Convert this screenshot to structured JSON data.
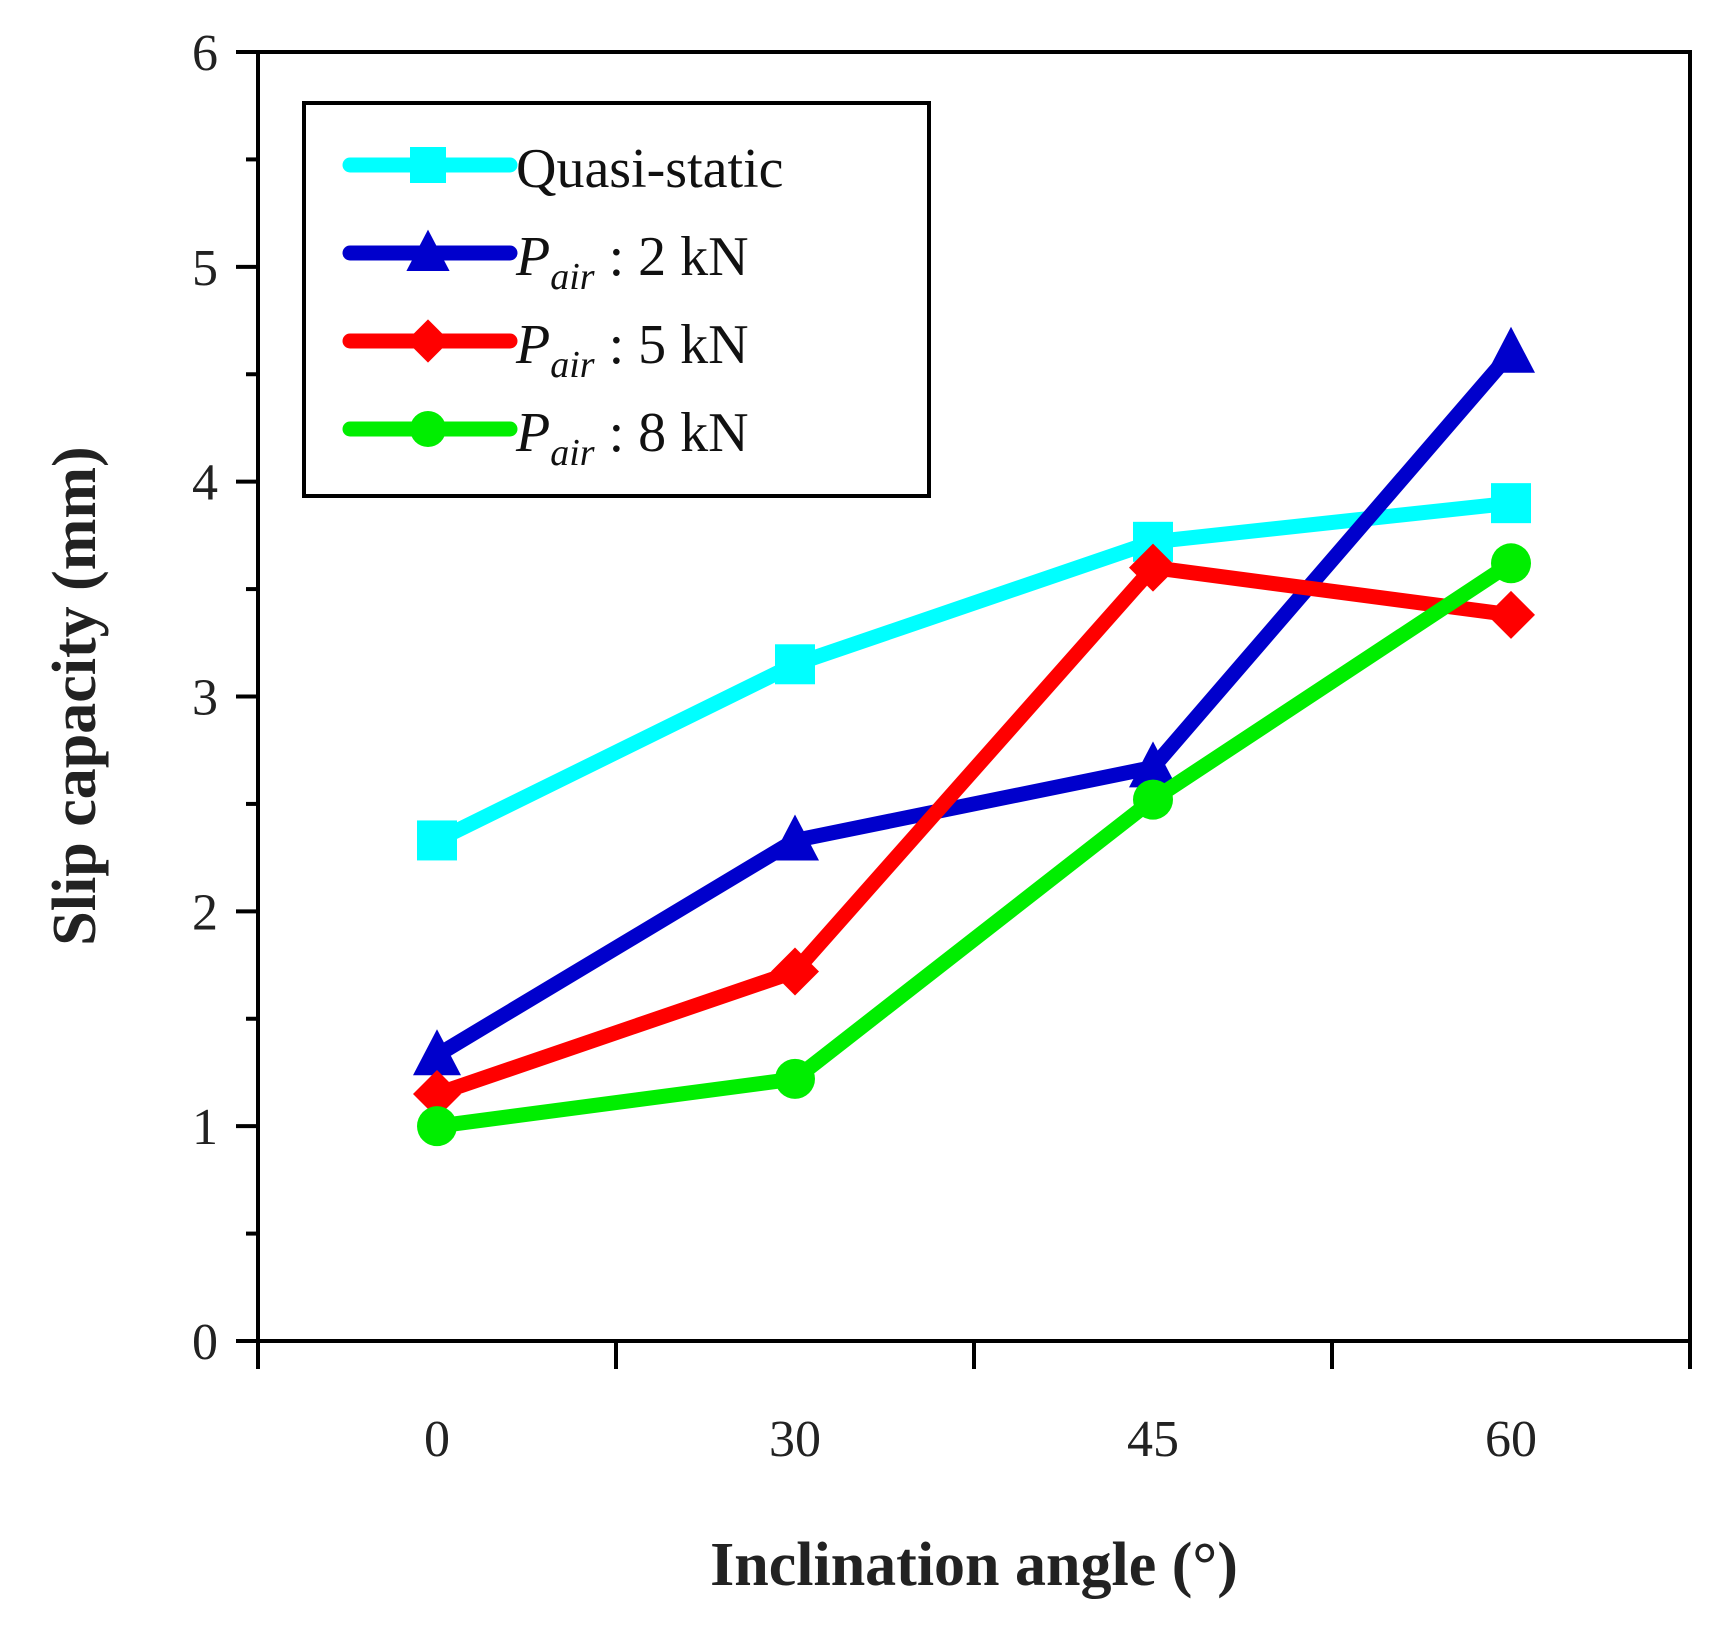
{
  "chart_data": {
    "type": "line",
    "title": "",
    "xlabel": "Inclination angle (°)",
    "ylabel": "Slip capacity (mm)",
    "categories": [
      "0",
      "30",
      "45",
      "60"
    ],
    "ylim": [
      0,
      6
    ],
    "yticks": [
      "0",
      "1",
      "2",
      "3",
      "4",
      "5",
      "6"
    ],
    "grid": false,
    "legend_position": "top-left",
    "series": [
      {
        "name": "Quasi-static",
        "legend_main": "Quasi-static",
        "legend_sub": "",
        "legend_suffix": "",
        "color": "#00FFFF",
        "marker": "square",
        "values": [
          2.33,
          3.15,
          3.72,
          3.9
        ]
      },
      {
        "name": "Pair : 2 kN",
        "legend_main": "P",
        "legend_sub": "air",
        "legend_suffix": " : 2 kN",
        "color": "#0000CC",
        "marker": "triangle",
        "values": [
          1.33,
          2.33,
          2.67,
          4.6
        ]
      },
      {
        "name": "Pair : 5 kN",
        "legend_main": "P",
        "legend_sub": "air",
        "legend_suffix": " : 5 kN",
        "color": "#FF0000",
        "marker": "diamond",
        "values": [
          1.15,
          1.72,
          3.6,
          3.38
        ]
      },
      {
        "name": "Pair : 8 kN",
        "legend_main": "P",
        "legend_sub": "air",
        "legend_suffix": " : 8 kN",
        "color": "#00EE00",
        "marker": "circle",
        "values": [
          1.0,
          1.22,
          2.52,
          3.62
        ]
      }
    ]
  }
}
